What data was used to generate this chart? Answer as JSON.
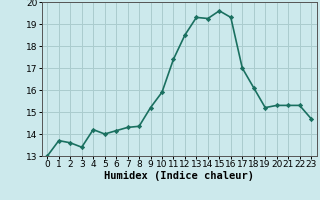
{
  "x": [
    0,
    1,
    2,
    3,
    4,
    5,
    6,
    7,
    8,
    9,
    10,
    11,
    12,
    13,
    14,
    15,
    16,
    17,
    18,
    19,
    20,
    21,
    22,
    23
  ],
  "y": [
    13.0,
    13.7,
    13.6,
    13.4,
    14.2,
    14.0,
    14.15,
    14.3,
    14.35,
    15.2,
    15.9,
    17.4,
    18.5,
    19.3,
    19.25,
    19.6,
    19.3,
    17.0,
    16.1,
    15.2,
    15.3,
    15.3,
    15.3,
    14.7
  ],
  "line_color": "#1a7060",
  "marker": "D",
  "marker_size": 2.2,
  "bg_color": "#cce9ec",
  "grid_color": "#aaccce",
  "xlabel": "Humidex (Indice chaleur)",
  "ylim": [
    13,
    20
  ],
  "xlim_min": -0.5,
  "xlim_max": 23.5,
  "yticks": [
    13,
    14,
    15,
    16,
    17,
    18,
    19,
    20
  ],
  "xticks": [
    0,
    1,
    2,
    3,
    4,
    5,
    6,
    7,
    8,
    9,
    10,
    11,
    12,
    13,
    14,
    15,
    16,
    17,
    18,
    19,
    20,
    21,
    22,
    23
  ],
  "xlabel_fontsize": 7.5,
  "tick_fontsize": 6.5,
  "line_width": 1.2
}
